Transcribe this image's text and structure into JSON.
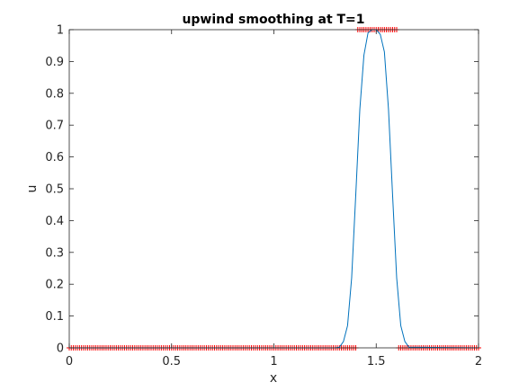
{
  "chart_data": {
    "type": "line",
    "title": "upwind smoothing at T=1",
    "xlabel": "x",
    "ylabel": "u",
    "xlim": [
      0,
      2
    ],
    "ylim": [
      0,
      1
    ],
    "xticks": [
      0,
      0.5,
      1,
      1.5,
      2
    ],
    "xtick_labels": [
      "0",
      "0.5",
      "1",
      "1.5",
      "2"
    ],
    "yticks": [
      0,
      0.1,
      0.2,
      0.3,
      0.4,
      0.5,
      0.6,
      0.7,
      0.8,
      0.9,
      1
    ],
    "ytick_labels": [
      "0",
      "0.1",
      "0.2",
      "0.3",
      "0.4",
      "0.5",
      "0.6",
      "0.7",
      "0.8",
      "0.9",
      "1"
    ],
    "grid": false,
    "series": [
      {
        "style": "line",
        "color": "#0072BD",
        "x": [
          0,
          1.3,
          1.32,
          1.34,
          1.36,
          1.38,
          1.4,
          1.42,
          1.44,
          1.46,
          1.48,
          1.5,
          1.52,
          1.54,
          1.56,
          1.58,
          1.6,
          1.62,
          1.64,
          1.66,
          2
        ],
        "y": [
          0,
          0,
          0.002,
          0.02,
          0.07,
          0.22,
          0.48,
          0.75,
          0.92,
          0.99,
          1.0,
          1.0,
          0.985,
          0.93,
          0.75,
          0.48,
          0.22,
          0.07,
          0.02,
          0.002,
          0
        ]
      },
      {
        "style": "markers",
        "marker": "+",
        "color": "#FF0000",
        "x_start": 0,
        "x_end": 2,
        "x_step": 0.01,
        "segments": [
          {
            "from": 0.0,
            "to": 1.4,
            "y": 0
          },
          {
            "from": 1.4,
            "to": 1.6,
            "y": 1
          },
          {
            "from": 1.6,
            "to": 2.0,
            "y": 0
          }
        ]
      }
    ]
  }
}
